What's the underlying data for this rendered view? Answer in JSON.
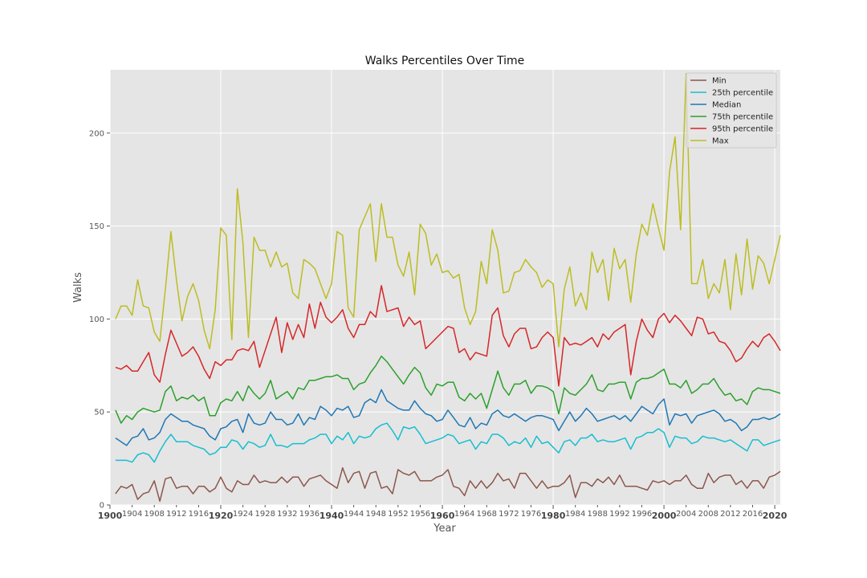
{
  "chart_data": {
    "type": "line",
    "title": "Walks Percentiles Over Time",
    "xlabel": "Year",
    "ylabel": "Walks",
    "xlim": [
      1900,
      2021
    ],
    "ylim": [
      0,
      234
    ],
    "x_ticks": [
      1900,
      1904,
      1908,
      1912,
      1916,
      1920,
      1924,
      1928,
      1932,
      1936,
      1940,
      1944,
      1948,
      1952,
      1956,
      1960,
      1964,
      1968,
      1972,
      1976,
      1980,
      1984,
      1988,
      1992,
      1996,
      2000,
      2004,
      2008,
      2012,
      2016,
      2020
    ],
    "x_tick_labels": [
      "1900",
      "1904",
      "1908",
      "1912",
      "1916",
      "1920",
      "1924",
      "1928",
      "1932",
      "1936",
      "1940",
      "1944",
      "1948",
      "1952",
      "1956",
      "1960",
      "1964",
      "1968",
      "1972",
      "1976",
      "1980",
      "1984",
      "1988",
      "1992",
      "1996",
      "2000",
      "2004",
      "2008",
      "2012",
      "2016",
      "2020"
    ],
    "x_major_ticks": [
      1900,
      1920,
      1940,
      1960,
      1980,
      2000,
      2020
    ],
    "y_ticks": [
      0,
      50,
      100,
      150,
      200
    ],
    "y_tick_labels": [
      "0",
      "50",
      "100",
      "150",
      "200"
    ],
    "grid": true,
    "legend_position": "top-right",
    "start_year": 1901,
    "series": [
      {
        "name": "Min",
        "color": "#8c564b",
        "values": [
          6,
          10,
          9,
          11,
          3,
          6,
          7,
          13,
          2,
          14,
          15,
          9,
          10,
          10,
          6,
          10,
          10,
          7,
          9,
          15,
          9,
          7,
          13,
          11,
          11,
          16,
          12,
          13,
          12,
          12,
          15,
          12,
          15,
          15,
          10,
          14,
          15,
          16,
          13,
          11,
          9,
          20,
          12,
          17,
          18,
          9,
          17,
          18,
          9,
          10,
          6,
          19,
          17,
          16,
          18,
          13,
          13,
          13,
          15,
          16,
          19,
          10,
          9,
          5,
          13,
          9,
          13,
          9,
          12,
          17,
          13,
          14,
          9,
          17,
          17,
          13,
          9,
          13,
          9,
          10,
          10,
          12,
          16,
          4,
          12,
          12,
          10,
          14,
          12,
          15,
          11,
          16,
          10,
          10,
          10,
          9,
          8,
          13,
          12,
          13,
          11,
          13,
          13,
          16,
          11,
          9,
          9,
          17,
          12,
          15,
          16,
          16,
          11,
          13,
          9,
          13,
          13,
          9,
          15,
          16,
          18
        ]
      },
      {
        "name": "25th percentile",
        "color": "#17becf",
        "values": [
          24,
          24,
          24,
          23,
          27,
          28,
          27,
          23,
          29,
          34,
          38,
          34,
          34,
          34,
          32,
          31,
          30,
          27,
          28,
          31,
          31,
          35,
          34,
          30,
          34,
          33,
          31,
          32,
          38,
          32,
          32,
          31,
          33,
          33,
          33,
          35,
          36,
          38,
          38,
          33,
          37,
          35,
          39,
          33,
          37,
          36,
          37,
          41,
          43,
          44,
          40,
          35,
          42,
          41,
          42,
          38,
          33,
          34,
          35,
          36,
          38,
          37,
          33,
          34,
          35,
          30,
          34,
          33,
          38,
          38,
          36,
          32,
          34,
          33,
          36,
          31,
          37,
          33,
          34,
          31,
          28,
          34,
          35,
          32,
          36,
          36,
          38,
          34,
          35,
          34,
          34,
          35,
          36,
          30,
          36,
          37,
          39,
          39,
          41,
          39,
          31,
          37,
          36,
          36,
          33,
          34,
          37,
          36,
          36,
          35,
          34,
          35,
          33,
          31,
          29,
          35,
          35,
          32,
          33,
          34,
          35
        ]
      },
      {
        "name": "Median",
        "color": "#1f77b4",
        "values": [
          36,
          34,
          32,
          36,
          37,
          41,
          35,
          36,
          39,
          46,
          49,
          47,
          45,
          45,
          43,
          42,
          41,
          37,
          35,
          41,
          42,
          45,
          46,
          39,
          49,
          44,
          43,
          44,
          50,
          46,
          46,
          43,
          44,
          49,
          43,
          47,
          46,
          53,
          51,
          48,
          52,
          51,
          53,
          47,
          48,
          55,
          57,
          55,
          62,
          56,
          54,
          52,
          51,
          51,
          56,
          52,
          49,
          48,
          45,
          46,
          51,
          47,
          43,
          42,
          47,
          41,
          44,
          43,
          49,
          51,
          48,
          47,
          49,
          47,
          45,
          47,
          48,
          48,
          47,
          46,
          40,
          45,
          50,
          45,
          48,
          52,
          49,
          45,
          46,
          47,
          48,
          46,
          48,
          45,
          49,
          53,
          51,
          49,
          54,
          57,
          43,
          49,
          48,
          49,
          44,
          48,
          49,
          50,
          51,
          49,
          45,
          46,
          44,
          40,
          42,
          46,
          46,
          47,
          46,
          47,
          49
        ]
      },
      {
        "name": "75th percentile",
        "color": "#2ca02c",
        "values": [
          51,
          44,
          48,
          46,
          50,
          52,
          51,
          50,
          51,
          61,
          64,
          56,
          58,
          57,
          59,
          56,
          58,
          48,
          48,
          55,
          57,
          56,
          61,
          56,
          64,
          60,
          57,
          60,
          67,
          57,
          59,
          61,
          57,
          63,
          62,
          67,
          67,
          68,
          69,
          69,
          70,
          68,
          68,
          62,
          65,
          66,
          71,
          75,
          80,
          77,
          73,
          69,
          65,
          70,
          74,
          71,
          63,
          59,
          65,
          64,
          66,
          66,
          58,
          56,
          60,
          57,
          60,
          52,
          62,
          72,
          63,
          59,
          65,
          65,
          67,
          60,
          64,
          64,
          63,
          61,
          49,
          63,
          60,
          59,
          62,
          65,
          70,
          62,
          61,
          65,
          65,
          66,
          66,
          57,
          66,
          68,
          68,
          69,
          71,
          73,
          65,
          65,
          63,
          67,
          60,
          62,
          65,
          65,
          68,
          63,
          59,
          60,
          56,
          57,
          54,
          61,
          63,
          62,
          62,
          61,
          60
        ]
      },
      {
        "name": "95th percentile",
        "color": "#d62728",
        "values": [
          74,
          73,
          75,
          72,
          72,
          77,
          82,
          70,
          66,
          81,
          94,
          87,
          80,
          82,
          85,
          80,
          73,
          68,
          77,
          75,
          78,
          78,
          83,
          84,
          83,
          88,
          74,
          83,
          92,
          101,
          82,
          98,
          89,
          97,
          90,
          108,
          95,
          109,
          101,
          98,
          101,
          105,
          95,
          90,
          97,
          97,
          104,
          101,
          118,
          104,
          105,
          106,
          96,
          101,
          97,
          99,
          84,
          87,
          90,
          93,
          96,
          95,
          82,
          84,
          78,
          82,
          81,
          80,
          102,
          106,
          91,
          85,
          92,
          95,
          95,
          84,
          85,
          90,
          93,
          90,
          64,
          90,
          86,
          87,
          86,
          88,
          90,
          85,
          92,
          89,
          93,
          95,
          97,
          70,
          88,
          100,
          94,
          90,
          100,
          103,
          98,
          102,
          99,
          95,
          91,
          101,
          100,
          92,
          93,
          88,
          87,
          83,
          77,
          79,
          84,
          88,
          85,
          90,
          92,
          88,
          83
        ]
      },
      {
        "name": "Max",
        "color": "#bcbd22",
        "values": [
          100,
          107,
          107,
          102,
          121,
          107,
          106,
          93,
          88,
          116,
          147,
          121,
          99,
          112,
          119,
          110,
          94,
          84,
          105,
          149,
          145,
          89,
          170,
          141,
          90,
          144,
          137,
          137,
          128,
          136,
          128,
          130,
          114,
          111,
          132,
          130,
          127,
          119,
          111,
          119,
          147,
          145,
          106,
          101,
          148,
          155,
          162,
          131,
          162,
          144,
          144,
          129,
          123,
          136,
          113,
          151,
          146,
          129,
          135,
          125,
          126,
          122,
          124,
          106,
          97,
          104,
          131,
          119,
          148,
          137,
          114,
          115,
          125,
          126,
          132,
          128,
          125,
          117,
          121,
          119,
          85,
          116,
          128,
          107,
          114,
          105,
          136,
          125,
          132,
          110,
          138,
          127,
          132,
          109,
          135,
          151,
          145,
          162,
          149,
          137,
          179,
          198,
          148,
          232,
          119,
          119,
          132,
          111,
          119,
          114,
          132,
          105,
          135,
          113,
          143,
          116,
          134,
          130,
          119,
          132,
          145
        ]
      }
    ]
  }
}
